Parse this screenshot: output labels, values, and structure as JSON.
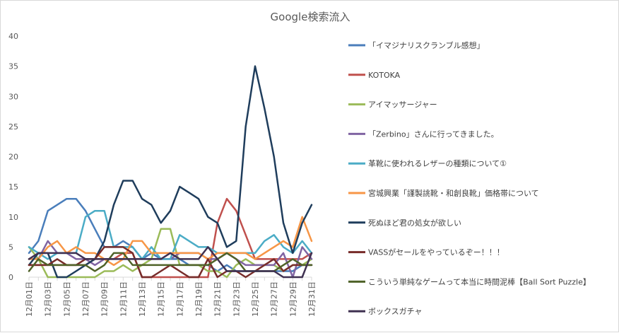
{
  "chart_data": {
    "type": "line",
    "title": "Google検索流入",
    "xlabel": "",
    "ylabel": "",
    "ylim": [
      0,
      40
    ],
    "yticks": [
      0,
      5,
      10,
      15,
      20,
      25,
      30,
      35,
      40
    ],
    "grid": false,
    "legend_position": "right",
    "categories": [
      "12月01日",
      "12月02日",
      "12月03日",
      "12月04日",
      "12月05日",
      "12月06日",
      "12月07日",
      "12月08日",
      "12月09日",
      "12月10日",
      "12月11日",
      "12月12日",
      "12月13日",
      "12月14日",
      "12月15日",
      "12月16日",
      "12月17日",
      "12月18日",
      "12月19日",
      "12月20日",
      "12月21日",
      "12月22日",
      "12月23日",
      "12月24日",
      "12月25日",
      "12月26日",
      "12月27日",
      "12月28日",
      "12月29日",
      "12月30日",
      "12月31日"
    ],
    "shown_tick_labels": [
      "12月01日",
      "12月03日",
      "12月05日",
      "12月07日",
      "12月09日",
      "12月11日",
      "12月13日",
      "12月15日",
      "12月17日",
      "12月19日",
      "12月21日",
      "12月23日",
      "12月25日",
      "12月27日",
      "12月29日",
      "12月31日"
    ],
    "series": [
      {
        "name": "「イマジナリスクランブル感想」",
        "color": "#4a7ebb",
        "values": [
          4,
          6,
          11,
          12,
          13,
          13,
          11,
          8,
          5,
          5,
          6,
          5,
          3,
          4,
          3,
          3,
          3,
          2,
          2,
          2,
          1,
          2,
          1,
          1,
          1,
          1,
          1,
          1,
          1,
          2,
          2
        ]
      },
      {
        "name": "KOTOKA",
        "color": "#c0504d",
        "values": [
          2,
          2,
          2,
          2,
          2,
          2,
          2,
          3,
          3,
          3,
          4,
          4,
          0,
          0,
          0,
          0,
          0,
          0,
          0,
          0,
          9,
          13,
          11,
          7,
          3,
          3,
          3,
          3,
          3,
          3,
          4
        ]
      },
      {
        "name": "アイマッサージャー",
        "color": "#9bbb59",
        "values": [
          5,
          3,
          0,
          0,
          0,
          0,
          0,
          0,
          1,
          1,
          2,
          1,
          2,
          3,
          8,
          8,
          2,
          2,
          2,
          1,
          1,
          0,
          2,
          3,
          2,
          2,
          2,
          1,
          2,
          2,
          3
        ]
      },
      {
        "name": "「Zerbino」さんに行ってきました。",
        "color": "#8064a2",
        "values": [
          3,
          3,
          6,
          4,
          4,
          3,
          3,
          2,
          3,
          3,
          3,
          3,
          3,
          3,
          3,
          3,
          4,
          4,
          4,
          3,
          3,
          4,
          3,
          2,
          2,
          2,
          2,
          4,
          0,
          5,
          3
        ]
      },
      {
        "name": "革靴に使われるレザーの種類について①",
        "color": "#4bacc6",
        "values": [
          5,
          4,
          3,
          4,
          4,
          4,
          10,
          11,
          11,
          5,
          5,
          5,
          3,
          5,
          3,
          3,
          7,
          6,
          5,
          5,
          4,
          4,
          4,
          4,
          4,
          6,
          7,
          5,
          4,
          6,
          4
        ]
      },
      {
        "name": "宮城興業「謹製誂靴・和創良靴」価格帯について",
        "color": "#f79646",
        "values": [
          3,
          3,
          5,
          6,
          4,
          5,
          4,
          4,
          3,
          2,
          3,
          6,
          6,
          4,
          4,
          4,
          4,
          4,
          4,
          3,
          4,
          4,
          4,
          4,
          3,
          4,
          5,
          6,
          5,
          10,
          6
        ]
      },
      {
        "name": "死ぬほど君の処女が欲しい",
        "color": "#1f3d5c",
        "values": [
          2,
          4,
          4,
          0,
          0,
          1,
          2,
          3,
          6,
          12,
          16,
          16,
          13,
          12,
          9,
          11,
          15,
          14,
          13,
          10,
          9,
          5,
          6,
          25,
          35,
          28,
          20,
          9,
          4,
          9,
          12
        ]
      },
      {
        "name": "VASSがセールをやっているぞー！！！",
        "color": "#772c2a",
        "values": [
          2,
          2,
          2,
          3,
          2,
          2,
          3,
          3,
          5,
          5,
          5,
          4,
          0,
          0,
          1,
          2,
          1,
          0,
          0,
          3,
          0,
          1,
          1,
          0,
          1,
          2,
          3,
          1,
          2,
          2,
          2
        ]
      },
      {
        "name": "こういう単純なゲームって本当に時間泥棒【Ball Sort Puzzle】",
        "color": "#4f6228",
        "values": [
          1,
          3,
          2,
          2,
          2,
          2,
          2,
          1,
          2,
          4,
          4,
          2,
          2,
          2,
          2,
          2,
          2,
          2,
          2,
          2,
          3,
          4,
          3,
          1,
          1,
          1,
          1,
          2,
          3,
          2,
          2
        ]
      },
      {
        "name": "ボックスガチャ",
        "color": "#3f3151",
        "values": [
          3,
          4,
          4,
          4,
          4,
          4,
          3,
          3,
          3,
          3,
          3,
          3,
          3,
          3,
          3,
          4,
          3,
          3,
          3,
          5,
          3,
          1,
          1,
          1,
          1,
          1,
          1,
          0,
          0,
          0,
          4
        ]
      }
    ]
  }
}
